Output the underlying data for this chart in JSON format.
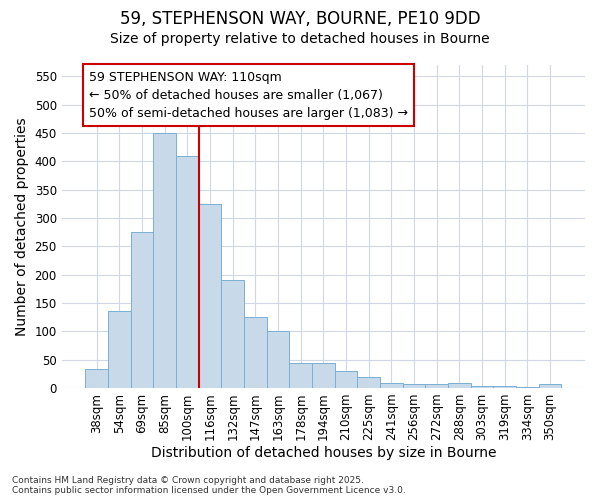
{
  "title_line1": "59, STEPHENSON WAY, BOURNE, PE10 9DD",
  "title_line2": "Size of property relative to detached houses in Bourne",
  "xlabel": "Distribution of detached houses by size in Bourne",
  "ylabel": "Number of detached properties",
  "categories": [
    "38sqm",
    "54sqm",
    "69sqm",
    "85sqm",
    "100sqm",
    "116sqm",
    "132sqm",
    "147sqm",
    "163sqm",
    "178sqm",
    "194sqm",
    "210sqm",
    "225sqm",
    "241sqm",
    "256sqm",
    "272sqm",
    "288sqm",
    "303sqm",
    "319sqm",
    "334sqm",
    "350sqm"
  ],
  "values": [
    33,
    135,
    275,
    450,
    410,
    325,
    190,
    125,
    100,
    44,
    44,
    30,
    20,
    8,
    7,
    7,
    9,
    4,
    3,
    2,
    7
  ],
  "bar_color": "#c8d9ea",
  "bar_edge_color": "#7bafd4",
  "vline_color": "#cc0000",
  "annotation_line1": "59 STEPHENSON WAY: 110sqm",
  "annotation_line2": "← 50% of detached houses are smaller (1,067)",
  "annotation_line3": "50% of semi-detached houses are larger (1,083) →",
  "annotation_box_color": "#ffffff",
  "annotation_box_edge": "#cc0000",
  "ylim": [
    0,
    570
  ],
  "yticks": [
    0,
    50,
    100,
    150,
    200,
    250,
    300,
    350,
    400,
    450,
    500,
    550
  ],
  "fig_bg": "#ffffff",
  "plot_bg": "#ffffff",
  "grid_color": "#d0d8e8",
  "footer_text": "Contains HM Land Registry data © Crown copyright and database right 2025.\nContains public sector information licensed under the Open Government Licence v3.0.",
  "title_fontsize": 12,
  "subtitle_fontsize": 10,
  "axis_label_fontsize": 10,
  "tick_fontsize": 8.5,
  "annotation_fontsize": 9
}
